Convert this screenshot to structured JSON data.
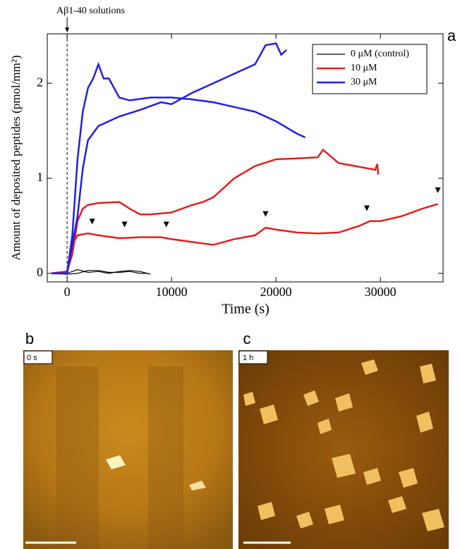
{
  "chart_data": {
    "type": "line",
    "panel_label": "a",
    "annotation": "Aβ1-40 solutions",
    "xlabel": "Time (s)",
    "ylabel": "Amount of deposited peptides (pmol/mm²)",
    "xlim": [
      -1900,
      36000
    ],
    "xticks": [
      0,
      10000,
      20000,
      30000
    ],
    "ylim": [
      -0.09,
      2.52
    ],
    "yticks": [
      0,
      1,
      2
    ],
    "legend": "top-right",
    "series": [
      {
        "name": "0 μM (control)",
        "color": "#000000",
        "runs": [
          {
            "x": [
              -1500,
              0,
              1000,
              2000,
              3000,
              4000,
              5000,
              6000,
              7000,
              8000
            ],
            "values": [
              0,
              0,
              0.04,
              0.01,
              0.02,
              0,
              0.02,
              0.03,
              0.02,
              -0.01
            ]
          },
          {
            "x": [
              -1500,
              0,
              1000,
              2000,
              3000,
              4000,
              5000,
              6000,
              7000,
              7800
            ],
            "values": [
              0,
              -0.01,
              0,
              0.03,
              0.03,
              0.01,
              0.01,
              0.02,
              0,
              0
            ]
          }
        ]
      },
      {
        "name": "10 μM",
        "color": "#e02020",
        "runs": [
          {
            "x": [
              -1500,
              0,
              500,
              1000,
              1500,
              2000,
              3000,
              5000,
              6000,
              7000,
              8000,
              10000,
              12000,
              13000,
              14000,
              16000,
              18000,
              20000,
              22000,
              24000,
              24500,
              26000,
              28000,
              29500,
              29700,
              29800
            ],
            "values": [
              0,
              0.02,
              0.2,
              0.55,
              0.68,
              0.72,
              0.74,
              0.75,
              0.68,
              0.62,
              0.62,
              0.64,
              0.72,
              0.75,
              0.8,
              1.0,
              1.13,
              1.2,
              1.21,
              1.22,
              1.3,
              1.16,
              1.12,
              1.09,
              1.15,
              1.04
            ]
          },
          {
            "x": [
              -1500,
              0,
              500,
              1000,
              2000,
              3000,
              5000,
              7000,
              9000,
              10000,
              12000,
              14000,
              16000,
              18000,
              19000,
              20000,
              22000,
              24000,
              26000,
              28000,
              29000,
              30000,
              32000,
              34000,
              35500
            ],
            "values": [
              0,
              0.02,
              0.3,
              0.4,
              0.42,
              0.4,
              0.37,
              0.38,
              0.38,
              0.36,
              0.33,
              0.3,
              0.36,
              0.4,
              0.48,
              0.46,
              0.43,
              0.42,
              0.43,
              0.5,
              0.55,
              0.55,
              0.6,
              0.68,
              0.73
            ]
          }
        ]
      },
      {
        "name": "30 μM",
        "color": "#2020e0",
        "runs": [
          {
            "x": [
              -1500,
              0,
              500,
              1000,
              1500,
              2000,
              2500,
              3000,
              3500,
              4000,
              5000,
              6000,
              8000,
              10000,
              12000,
              14000,
              16000,
              18000,
              20000,
              22000,
              22800
            ],
            "values": [
              0,
              0,
              0.4,
              1.2,
              1.7,
              1.95,
              2.05,
              2.2,
              2.05,
              2.05,
              1.85,
              1.82,
              1.85,
              1.85,
              1.83,
              1.8,
              1.75,
              1.7,
              1.6,
              1.47,
              1.43
            ]
          },
          {
            "x": [
              -1500,
              0,
              500,
              1000,
              1500,
              2000,
              3000,
              4000,
              5000,
              7000,
              9000,
              10000,
              12000,
              14000,
              16000,
              18000,
              19000,
              20000,
              20500,
              21000
            ],
            "values": [
              0,
              0,
              0.3,
              0.6,
              1.1,
              1.4,
              1.55,
              1.6,
              1.65,
              1.72,
              1.8,
              1.78,
              1.9,
              2.0,
              2.1,
              2.2,
              2.4,
              2.42,
              2.3,
              2.35
            ]
          }
        ]
      }
    ],
    "markers": {
      "x": [
        2400,
        5500,
        9500,
        19000,
        28700,
        35500
      ],
      "values": [
        0.5,
        0.47,
        0.47,
        0.58,
        0.64,
        0.83
      ]
    }
  },
  "panels": [
    {
      "label": "b",
      "time": "0 s"
    },
    {
      "label": "c",
      "time": "1 h"
    }
  ]
}
